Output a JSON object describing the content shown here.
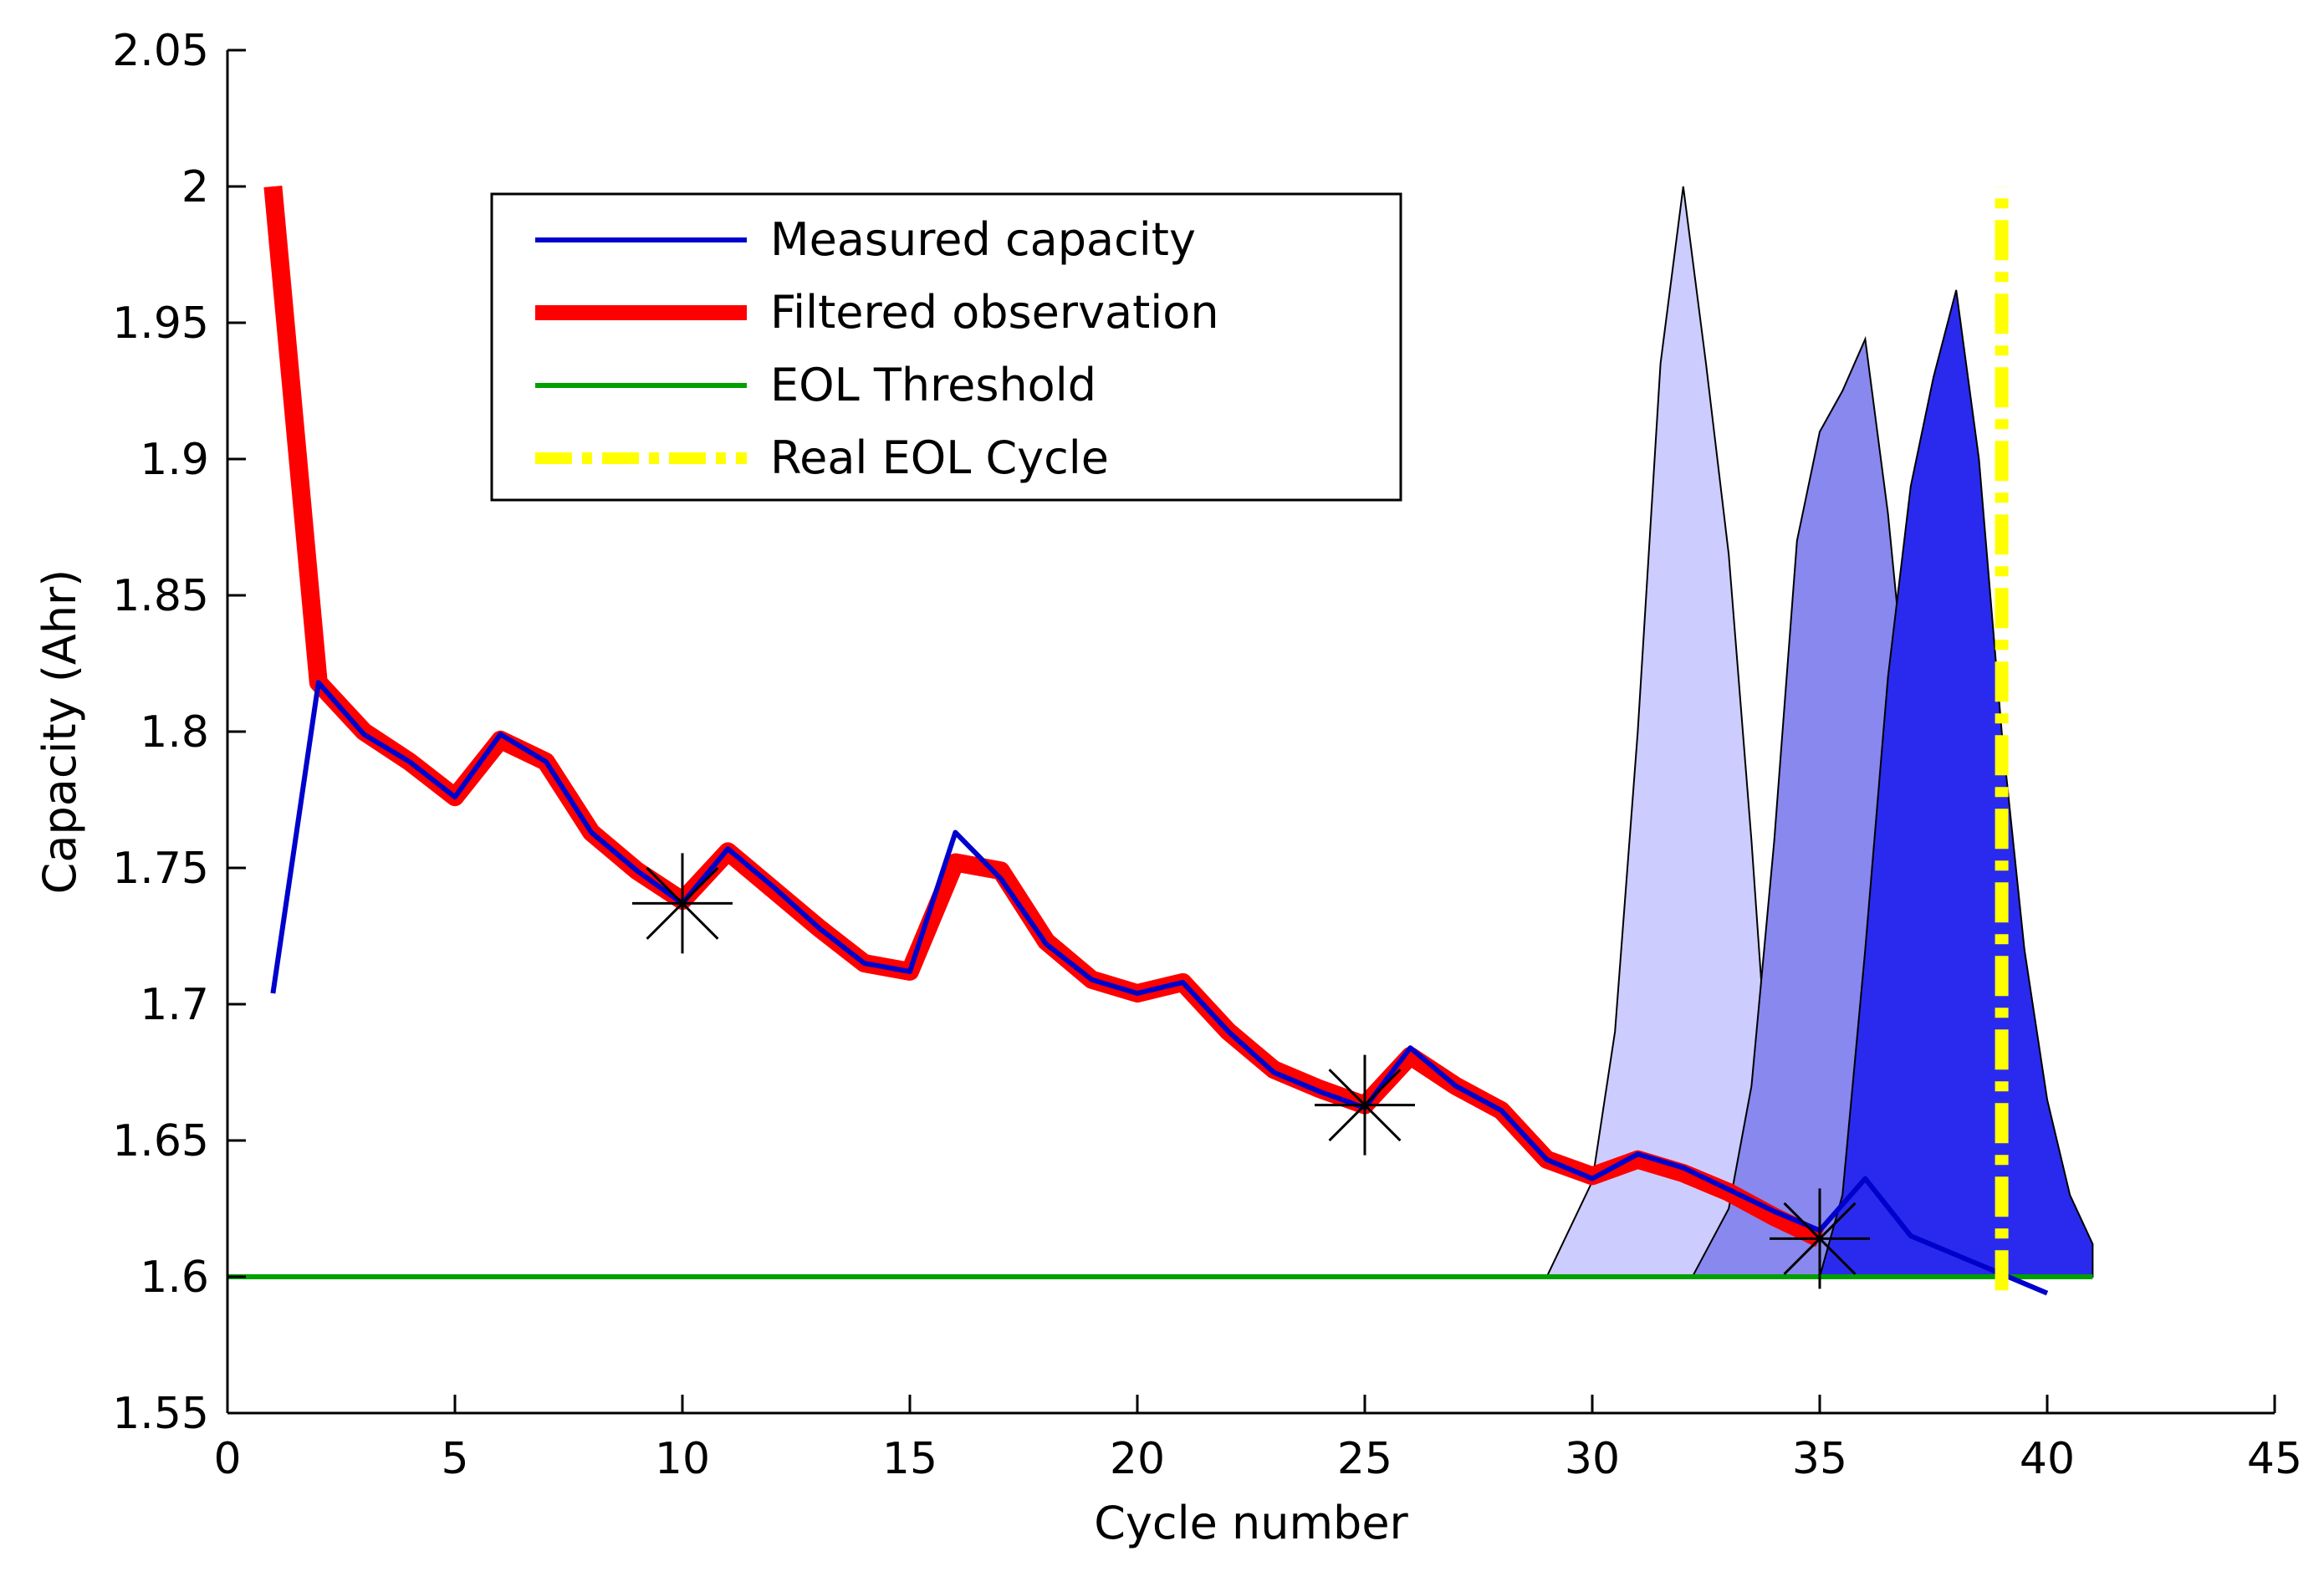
{
  "chart_data": {
    "type": "line",
    "title": "",
    "xlabel": "Cycle number",
    "ylabel": "Capacity (Ahr)",
    "xlim": [
      0,
      45
    ],
    "ylim": [
      1.55,
      2.05
    ],
    "xticks": [
      0,
      5,
      10,
      15,
      20,
      25,
      30,
      35,
      40,
      45
    ],
    "yticks": [
      1.55,
      1.6,
      1.65,
      1.7,
      1.75,
      1.8,
      1.85,
      1.9,
      1.95,
      2.0,
      2.05
    ],
    "xtick_labels": [
      "0",
      "5",
      "10",
      "15",
      "20",
      "25",
      "30",
      "35",
      "40",
      "45"
    ],
    "ytick_labels": [
      "1.55",
      "1.6",
      "1.65",
      "1.7",
      "1.75",
      "1.8",
      "1.85",
      "1.9",
      "1.95",
      "2",
      "2.05"
    ],
    "grid": false,
    "legend_position": "top-left",
    "series": [
      {
        "name": "Measured capacity",
        "color": "#0000cc",
        "style": "solid",
        "x": [
          1,
          2,
          3,
          4,
          5,
          6,
          7,
          8,
          9,
          10,
          11,
          12,
          13,
          14,
          15,
          16,
          17,
          18,
          19,
          20,
          21,
          22,
          23,
          24,
          25,
          26,
          27,
          28,
          29,
          30,
          31,
          32,
          33,
          34,
          35,
          36,
          37,
          38,
          39,
          40
        ],
        "y": [
          1.704,
          1.818,
          1.799,
          1.789,
          1.776,
          1.799,
          1.789,
          1.763,
          1.749,
          1.737,
          1.757,
          1.743,
          1.728,
          1.715,
          1.712,
          1.763,
          1.746,
          1.722,
          1.709,
          1.704,
          1.708,
          1.69,
          1.675,
          1.668,
          1.662,
          1.684,
          1.67,
          1.661,
          1.643,
          1.636,
          1.645,
          1.64,
          1.632,
          1.624,
          1.617,
          1.636,
          1.615,
          1.608,
          1.601,
          1.594
        ]
      },
      {
        "name": "Filtered observation",
        "color": "#ff0000",
        "style": "thick-solid",
        "x": [
          1,
          2,
          3,
          4,
          5,
          6,
          7,
          8,
          9,
          10,
          11,
          12,
          13,
          14,
          15,
          16,
          17,
          18,
          19,
          20,
          21,
          22,
          23,
          24,
          25,
          26,
          27,
          28,
          29,
          30,
          31,
          32,
          33,
          34,
          35
        ],
        "y": [
          2.0,
          1.818,
          1.8,
          1.789,
          1.776,
          1.797,
          1.789,
          1.763,
          1.749,
          1.738,
          1.756,
          1.742,
          1.728,
          1.715,
          1.712,
          1.752,
          1.749,
          1.723,
          1.709,
          1.704,
          1.708,
          1.69,
          1.676,
          1.669,
          1.663,
          1.681,
          1.67,
          1.661,
          1.643,
          1.637,
          1.643,
          1.638,
          1.631,
          1.622,
          1.614
        ]
      },
      {
        "name": "EOL Threshold",
        "color": "#00a000",
        "style": "solid",
        "x": [
          0,
          41
        ],
        "y": [
          1.6,
          1.6
        ]
      },
      {
        "name": "Real EOL Cycle",
        "color": "#ffff00",
        "style": "dash-dot",
        "x": [
          39,
          39
        ],
        "y": [
          1.595,
          2.0
        ]
      }
    ],
    "distributions": [
      {
        "color": "#ccccff",
        "x": [
          29,
          30,
          30.5,
          31,
          31.5,
          32,
          32.5,
          33,
          33.5,
          34,
          35
        ],
        "y": [
          1.6,
          1.635,
          1.69,
          1.8,
          1.935,
          2.0,
          1.935,
          1.865,
          1.76,
          1.64,
          1.6
        ]
      },
      {
        "color": "#8888ee",
        "x": [
          32.2,
          33,
          33.5,
          34,
          34.5,
          35,
          35.5,
          36,
          36.5,
          37,
          37.5,
          38,
          39
        ],
        "y": [
          1.6,
          1.625,
          1.67,
          1.76,
          1.87,
          1.91,
          1.925,
          1.944,
          1.88,
          1.795,
          1.715,
          1.66,
          1.6
        ]
      },
      {
        "color": "#2a2aee",
        "x": [
          35,
          35.5,
          36,
          36.5,
          37,
          37.5,
          38,
          38.5,
          39,
          39.5,
          40,
          40.5,
          41,
          41
        ],
        "y": [
          1.6,
          1.63,
          1.72,
          1.82,
          1.89,
          1.93,
          1.962,
          1.9,
          1.8,
          1.72,
          1.665,
          1.63,
          1.612,
          1.6
        ]
      }
    ],
    "markers": [
      {
        "x": 10,
        "y": 1.737,
        "symbol": "star"
      },
      {
        "x": 25,
        "y": 1.663,
        "symbol": "star"
      },
      {
        "x": 35,
        "y": 1.614,
        "symbol": "star"
      }
    ]
  }
}
